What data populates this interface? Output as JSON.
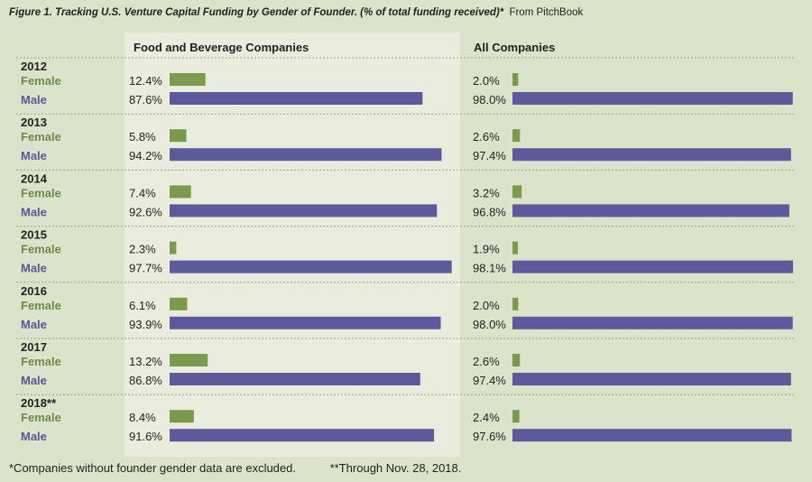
{
  "title": "Figure 1. Tracking U.S. Venture Capital Funding by Gender of Founder. (% of total funding received)*",
  "source": "From PitchBook",
  "footnotes": [
    "*Companies without founder gender data are excluded.",
    "**Through Nov. 28, 2018."
  ],
  "colors": {
    "female": "#7a9a4e",
    "male": "#5d5a9c",
    "female_label": "#6f8c45",
    "male_label": "#5a5796",
    "panel_highlight": "#eaeddd",
    "background": "#dbe3cb"
  },
  "chart_data": {
    "type": "bar",
    "orientation": "horizontal",
    "panels": [
      "Food and Beverage Companies",
      "All Companies"
    ],
    "series_labels": [
      "Female",
      "Male"
    ],
    "xlim": [
      0,
      100
    ],
    "groups": [
      {
        "year": "2012",
        "food_female": 12.4,
        "food_male": 87.6,
        "all_female": 2.0,
        "all_male": 98.0
      },
      {
        "year": "2013",
        "food_female": 5.8,
        "food_male": 94.2,
        "all_female": 2.6,
        "all_male": 97.4
      },
      {
        "year": "2014",
        "food_female": 7.4,
        "food_male": 92.6,
        "all_female": 3.2,
        "all_male": 96.8
      },
      {
        "year": "2015",
        "food_female": 2.3,
        "food_male": 97.7,
        "all_female": 1.9,
        "all_male": 98.1
      },
      {
        "year": "2016",
        "food_female": 6.1,
        "food_male": 93.9,
        "all_female": 2.0,
        "all_male": 98.0
      },
      {
        "year": "2017",
        "food_female": 13.2,
        "food_male": 86.8,
        "all_female": 2.6,
        "all_male": 97.4
      },
      {
        "year": "2018**",
        "food_female": 8.4,
        "food_male": 91.6,
        "all_female": 2.4,
        "all_male": 97.6
      }
    ]
  }
}
